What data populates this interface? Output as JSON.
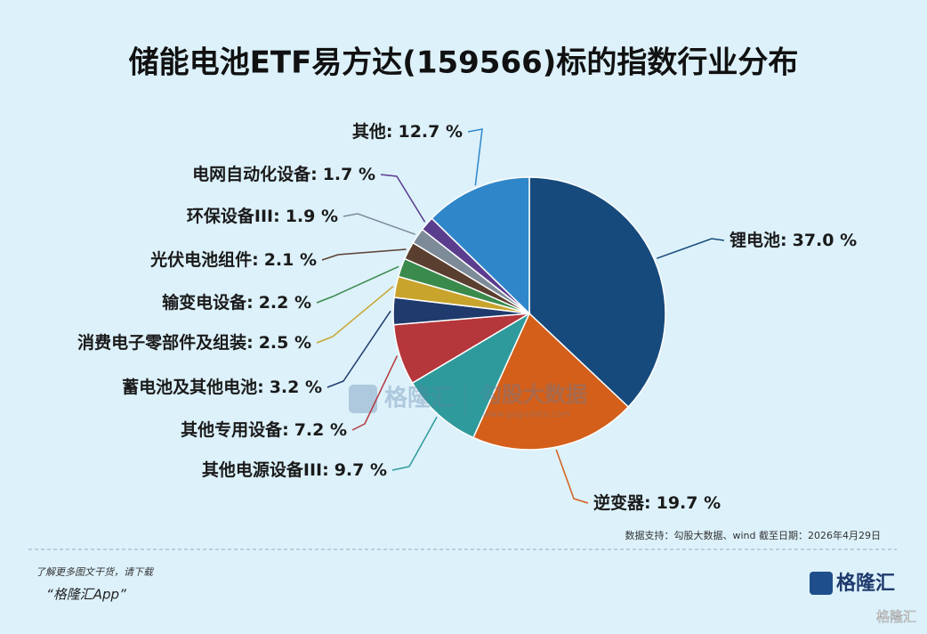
{
  "chart_data": {
    "type": "pie",
    "title": "储能电池ETF易方达(159566)标的指数行业分布",
    "categories": [
      "锂电池:",
      "逆变器:",
      "其他电源设备III:",
      "其他专用设备:",
      "蓄电池及其他电池:",
      "消费电子零部件及组装:",
      "输变电设备:",
      "光伏电池组件:",
      "环保设备III:",
      "电网自动化设备:",
      "其他:"
    ],
    "values": [
      37.0,
      19.7,
      9.7,
      7.2,
      3.2,
      2.5,
      2.2,
      2.1,
      1.9,
      1.7,
      12.7
    ],
    "value_labels": [
      "37.0 %",
      "19.7 %",
      "9.7 %",
      "7.2 %",
      "3.2 %",
      "2.5 %",
      "2.2 %",
      "2.1 %",
      "1.9 %",
      "1.7 %",
      "12.7 %"
    ],
    "colors": [
      "#174a7c",
      "#d35f1a",
      "#2f9a9b",
      "#b5363b",
      "#1f3a6d",
      "#c9a42c",
      "#3a8a4c",
      "#5a3e2f",
      "#7d8b98",
      "#5b3d8e",
      "#2f87c9"
    ],
    "source": "数据支持：勾股大数据、wind 截至日期：2026年4月29日",
    "footer_note": "了解更多图文干货，请下载",
    "footer_app": "“格隆汇App”",
    "logo": "格隆汇",
    "watermark": [
      "格隆汇",
      "勾股大数据",
      "www.gogudata.com"
    ],
    "corner_mark": "格隆汇"
  }
}
